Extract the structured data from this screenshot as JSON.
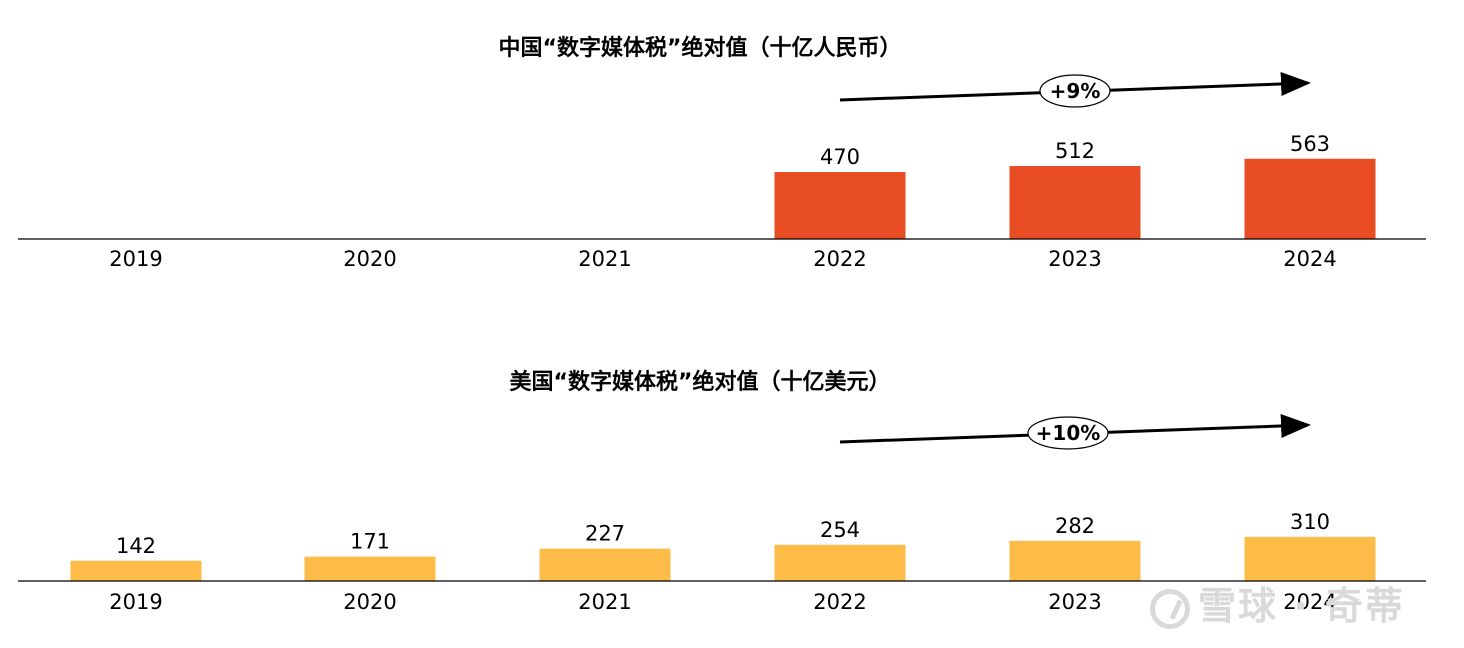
{
  "chart_data": [
    {
      "type": "bar",
      "title": "中国“数字媒体税”绝对值（十亿人民币）",
      "categories": [
        "2019",
        "2020",
        "2021",
        "2022",
        "2023",
        "2024"
      ],
      "values": [
        null,
        null,
        null,
        470,
        512,
        563
      ],
      "growth_annotation": "+9%",
      "bar_color": "#E84C22",
      "xlabel": "",
      "ylabel": ""
    },
    {
      "type": "bar",
      "title": "美国“数字媒体税”绝对值（十亿美元）",
      "categories": [
        "2019",
        "2020",
        "2021",
        "2022",
        "2023",
        "2024"
      ],
      "values": [
        142,
        171,
        227,
        254,
        282,
        310
      ],
      "growth_annotation": "+10%",
      "bar_color": "#FDBB47",
      "xlabel": "",
      "ylabel": ""
    }
  ],
  "watermark": "雪球 · 奇蒂"
}
